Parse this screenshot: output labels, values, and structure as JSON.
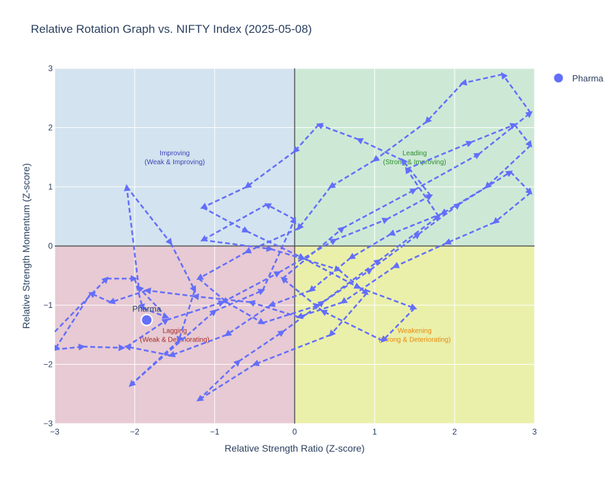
{
  "chart_data": {
    "type": "scatter",
    "title": "Relative Rotation Graph vs. NIFTY Index (2025-05-08)",
    "xlabel": "Relative Strength Ratio (Z-score)",
    "ylabel": "Relative Strength Momentum (Z-score)",
    "xlim": [
      -3,
      3
    ],
    "ylim": [
      -3,
      3
    ],
    "xticks": [
      "−3",
      "−2",
      "−1",
      "0",
      "1",
      "2",
      "3"
    ],
    "yticks": [
      "−3",
      "−2",
      "−1",
      "0",
      "1",
      "2",
      "3"
    ],
    "grid": true,
    "legend_position": "top-right",
    "quadrants": [
      {
        "key": "improving",
        "title": "Improving",
        "subtitle": "(Weak & Improving)",
        "fill": "#d3e3ef",
        "text_color": "#3b43b9",
        "label_x": -1.5,
        "label_y": 1.5
      },
      {
        "key": "leading",
        "title": "Leading",
        "subtitle": "(Strong & Improving)",
        "fill": "#cde9d6",
        "text_color": "#2e8b2e",
        "label_x": 1.5,
        "label_y": 1.5
      },
      {
        "key": "lagging",
        "title": "Lagging",
        "subtitle": "(Weak & Deteriorating)",
        "fill": "#e7cad3",
        "text_color": "#a52a2a",
        "label_x": -1.5,
        "label_y": -1.5
      },
      {
        "key": "weakening",
        "title": "Weakening",
        "subtitle": "(Strong & Deteriorating)",
        "fill": "#eaf0aa",
        "text_color": "#e8890c",
        "label_x": 1.5,
        "label_y": -1.5
      }
    ],
    "series": [
      {
        "name": "Pharma",
        "color": "#636efa",
        "current": {
          "x": -1.85,
          "y": -1.25,
          "label": "Pharma"
        },
        "trail": [
          [
            -3.0,
            -1.45
          ],
          [
            -2.35,
            -0.55
          ],
          [
            -2.0,
            -0.55
          ],
          [
            -1.9,
            -1.05
          ],
          [
            -1.6,
            -1.2
          ],
          [
            -1.95,
            -0.7
          ],
          [
            -2.1,
            1.0
          ],
          [
            -1.55,
            0.05
          ],
          [
            -1.25,
            -0.75
          ],
          [
            -1.45,
            -1.6
          ],
          [
            -2.05,
            -2.35
          ],
          [
            -1.0,
            -1.1
          ],
          [
            -0.4,
            -0.75
          ],
          [
            0.0,
            0.45
          ],
          [
            -0.35,
            0.7
          ],
          [
            -1.15,
            0.1
          ],
          [
            -0.3,
            -0.05
          ],
          [
            0.55,
            -0.4
          ],
          [
            0.9,
            -0.8
          ],
          [
            0.45,
            -1.5
          ],
          [
            -0.5,
            -2.0
          ],
          [
            -1.2,
            -2.6
          ],
          [
            -0.7,
            -1.95
          ],
          [
            -0.15,
            -1.45
          ],
          [
            0.35,
            -0.95
          ],
          [
            1.05,
            -0.25
          ],
          [
            1.8,
            0.5
          ],
          [
            1.4,
            1.3
          ],
          [
            2.2,
            1.75
          ],
          [
            2.75,
            2.05
          ],
          [
            2.95,
            1.7
          ],
          [
            2.4,
            1.0
          ],
          [
            1.85,
            0.55
          ],
          [
            1.2,
            0.2
          ],
          [
            0.7,
            -0.2
          ],
          [
            0.2,
            -0.75
          ],
          [
            -0.3,
            -1.0
          ],
          [
            -0.85,
            -1.5
          ],
          [
            -1.55,
            -1.85
          ],
          [
            -2.1,
            -1.7
          ],
          [
            -1.6,
            -1.25
          ],
          [
            -0.9,
            -0.95
          ],
          [
            -0.2,
            -0.45
          ],
          [
            0.5,
            0.1
          ],
          [
            1.15,
            0.45
          ],
          [
            1.7,
            0.85
          ],
          [
            1.35,
            1.45
          ],
          [
            0.8,
            1.8
          ],
          [
            0.3,
            2.05
          ],
          [
            0.0,
            1.6
          ],
          [
            -0.6,
            1.0
          ],
          [
            -1.15,
            0.65
          ],
          [
            -0.6,
            0.25
          ],
          [
            0.1,
            -0.2
          ],
          [
            0.8,
            -0.7
          ],
          [
            1.5,
            -1.05
          ],
          [
            1.1,
            -1.6
          ],
          [
            0.35,
            -1.1
          ],
          [
            -0.15,
            -0.55
          ],
          [
            0.6,
            0.3
          ],
          [
            1.5,
            0.95
          ],
          [
            2.3,
            1.55
          ],
          [
            2.95,
            2.25
          ],
          [
            2.6,
            2.9
          ],
          [
            2.1,
            2.75
          ],
          [
            1.65,
            2.1
          ],
          [
            1.0,
            1.45
          ],
          [
            0.45,
            1.0
          ],
          [
            0.05,
            0.3
          ],
          [
            -0.6,
            -0.1
          ],
          [
            -1.2,
            -0.55
          ],
          [
            -0.85,
            -0.95
          ],
          [
            -0.4,
            -1.3
          ],
          [
            0.3,
            -1.0
          ],
          [
            0.95,
            -0.4
          ],
          [
            1.55,
            0.2
          ],
          [
            2.05,
            0.7
          ],
          [
            2.7,
            1.25
          ],
          [
            2.95,
            0.9
          ],
          [
            2.5,
            0.4
          ],
          [
            1.9,
            0.05
          ],
          [
            1.25,
            -0.35
          ],
          [
            0.6,
            -0.95
          ],
          [
            0.05,
            -1.2
          ],
          [
            -0.55,
            -0.95
          ],
          [
            -1.25,
            -0.85
          ],
          [
            -1.85,
            -0.75
          ],
          [
            -2.3,
            -0.95
          ],
          [
            -2.55,
            -0.8
          ],
          [
            -3.0,
            -1.75
          ],
          [
            -2.65,
            -1.7
          ],
          [
            -2.15,
            -1.72
          ]
        ]
      }
    ]
  }
}
